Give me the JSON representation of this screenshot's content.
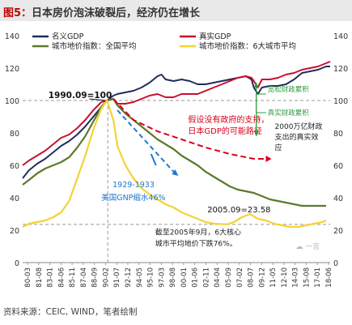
{
  "title": {
    "prefix": "图5：",
    "text": "日本房价泡沫破裂后，经济仍在增长"
  },
  "source": "资料来源：CEIC, WIND，笔者绘制",
  "colors": {
    "nominal": "#1f2d5c",
    "real": "#c8102e",
    "land_all": "#5b7a2b",
    "land_six": "#f5d236",
    "annot_red": "#d9001b",
    "annot_blue": "#1f77d0",
    "annot_green": "#2a9a3a",
    "guide": "#999999",
    "bg_title": "#e9e9e9"
  },
  "chart_data": {
    "type": "line",
    "title": "",
    "xlabel": "",
    "ylabel": "",
    "ylim": [
      0,
      140
    ],
    "yticks": [
      0,
      20,
      40,
      60,
      80,
      100,
      120,
      140
    ],
    "y_right_ticks": [
      0,
      20,
      40,
      60,
      80,
      100,
      120,
      140
    ],
    "x_range": [
      1980.2,
      2018.5
    ],
    "x_tick_labels": [
      "80-03",
      "81-08",
      "83-01",
      "84-06",
      "85-11",
      "87-04",
      "88-09",
      "90-02",
      "91-07",
      "92-12",
      "94-05",
      "95-10",
      "97-03",
      "98-08",
      "00-01",
      "01-06",
      "02-11",
      "04-04",
      "05-09",
      "07-02",
      "08-07",
      "09-12",
      "11-05",
      "12-10",
      "14-03",
      "15-08",
      "17-01",
      "18-06"
    ],
    "legend": [
      "名义GDP",
      "真实GDP",
      "城市地价指数：全国平均",
      "城市地价指数：6大城市平均"
    ],
    "legend_placement": "top",
    "series": [
      {
        "name": "名义GDP",
        "x": [
          1980.2,
          1981,
          1982,
          1983,
          1984,
          1985,
          1986,
          1987,
          1988,
          1989,
          1990,
          1990.7,
          1991.5,
          1992,
          1993,
          1994,
          1995,
          1996,
          1997,
          1997.5,
          1998,
          1999,
          2000,
          2001,
          2002,
          2003,
          2004,
          2005,
          2006,
          2007,
          2008,
          2008.7,
          2009,
          2009.5,
          2010,
          2011,
          2012,
          2013,
          2014,
          2015,
          2016,
          2017,
          2018,
          2018.5
        ],
        "y": [
          52,
          57,
          61,
          64,
          68,
          72,
          75,
          79,
          84,
          90,
          96,
          100,
          103,
          104,
          105,
          106,
          108,
          111,
          115,
          116,
          113,
          112,
          113,
          112,
          110,
          110,
          111,
          112,
          113,
          114,
          115,
          113,
          108,
          104,
          108,
          109,
          109,
          110,
          113,
          117,
          118,
          119,
          121,
          121
        ]
      },
      {
        "name": "真实GDP",
        "x": [
          1980.2,
          1981,
          1982,
          1983,
          1984,
          1985,
          1986,
          1987,
          1988,
          1989,
          1990,
          1990.7,
          1991.5,
          1992,
          1993,
          1994,
          1995,
          1996,
          1997,
          1998,
          1999,
          2000,
          2001,
          2002,
          2003,
          2004,
          2005,
          2006,
          2007,
          2008,
          2008.7,
          2009,
          2009.5,
          2010,
          2011,
          2012,
          2013,
          2014,
          2015,
          2016,
          2017,
          2018,
          2018.5
        ],
        "y": [
          60,
          63,
          66,
          69,
          73,
          77,
          79,
          83,
          88,
          94,
          99,
          100,
          101,
          98,
          98,
          99,
          101,
          103,
          104,
          102,
          102,
          104,
          104,
          104,
          106,
          108,
          110,
          112,
          114,
          115,
          114,
          112,
          108,
          113,
          113,
          114,
          116,
          117,
          119,
          120,
          121,
          123,
          124
        ]
      },
      {
        "name": "城市地价指数：全国平均",
        "x": [
          1980.2,
          1981,
          1982,
          1983,
          1984,
          1985,
          1986,
          1987,
          1988,
          1989,
          1990,
          1990.7,
          1991.5,
          1992,
          1993,
          1994,
          1995,
          1996,
          1997,
          1998,
          1999,
          2000,
          2001,
          2002,
          2003,
          2004,
          2005,
          2006,
          2007,
          2008,
          2009,
          2010,
          2011,
          2012,
          2013,
          2014,
          2015,
          2016,
          2017,
          2018
        ],
        "y": [
          48,
          51,
          55,
          58,
          60,
          62,
          65,
          71,
          78,
          87,
          96,
          100,
          101,
          97,
          92,
          88,
          84,
          80,
          76,
          73,
          70,
          66,
          63,
          60,
          56,
          53,
          50,
          47,
          45,
          44,
          43,
          41,
          39,
          38,
          37,
          36,
          35,
          35,
          35,
          35
        ]
      },
      {
        "name": "城市地价指数：6大城市平均",
        "x": [
          1980.2,
          1981,
          1982,
          1983,
          1984,
          1985,
          1986,
          1987,
          1988,
          1989,
          1990,
          1990.7,
          1991.5,
          1992,
          1993,
          1994,
          1995,
          1996,
          1997,
          1998,
          1999,
          2000,
          2001,
          2002,
          2003,
          2004,
          2005.7,
          2006.5,
          2007.5,
          2008.5,
          2009.5,
          2010.5,
          2011.5,
          2012.5,
          2013.5,
          2014.5,
          2015.5,
          2016.5,
          2017.5,
          2018
        ],
        "y": [
          22,
          24,
          25,
          26,
          28,
          31,
          38,
          52,
          66,
          82,
          95,
          100,
          88,
          72,
          60,
          52,
          46,
          42,
          39,
          36,
          34,
          31,
          29,
          27,
          25,
          24,
          23.58,
          25,
          28,
          30,
          27,
          26,
          24,
          23,
          22,
          22,
          23,
          24,
          25,
          26
        ]
      }
    ],
    "reference_lines": [
      {
        "type": "horizontal",
        "y": 100,
        "style": "dashed"
      },
      {
        "type": "horizontal",
        "y": 23.58,
        "style": "dashed"
      },
      {
        "type": "vertical",
        "x": 1990.8,
        "style": "dashed"
      }
    ],
    "annotations": {
      "peak_label": "1990.09=100",
      "hypo_line1": "假设没有政府的支持，",
      "hypo_line2": "日本GDP的可能路径",
      "qe_label": "宽松财政累积",
      "tight_label": "真实财政累积",
      "stimulus_line1": "2000万亿财政",
      "stimulus_line2": "支出的真实效",
      "stimulus_line3": "应",
      "us_line1": "1929-1933",
      "us_line2": "美国GNP缩水46%",
      "low_label": "2005.09=23.58",
      "note_line1": "截至2005年9月，6大核心",
      "note_line2": "城市平均地价下跌76%。",
      "watermark": "☁ 一言"
    }
  }
}
